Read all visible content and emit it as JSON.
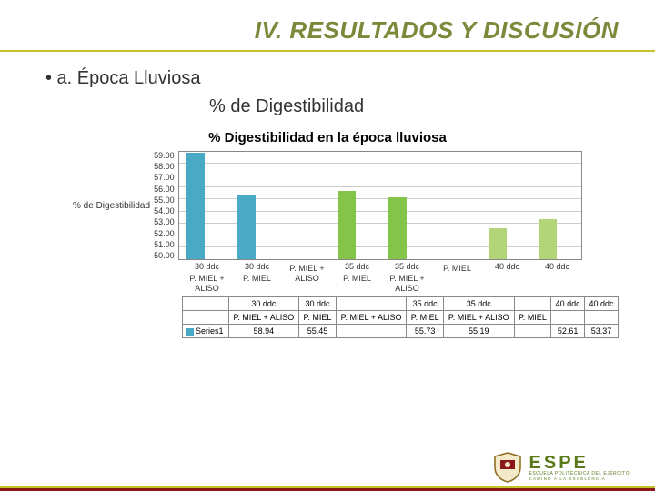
{
  "header": {
    "title": "IV. RESULTADOS Y DISCUSIÓN"
  },
  "bullet": "•  a. Época Lluviosa",
  "subTitle": "% de Digestibilidad",
  "chart": {
    "title": "% Digestibilidad en la época lluviosa",
    "type": "bar",
    "ylabel": "% de Digestibilidad",
    "ylim": [
      50,
      59
    ],
    "ytick_step": 1,
    "yticks": [
      "59.00",
      "58.00",
      "57.00",
      "56.00",
      "55.00",
      "54.00",
      "53.00",
      "52.00",
      "51.00",
      "50.00"
    ],
    "grid_color": "#cccccc",
    "border_color": "#888888",
    "background_color": "#ffffff",
    "bar_width_pct": 4.5,
    "categories": [
      {
        "c1": "30 ddc",
        "c2": "P. MIEL + ALISO",
        "tc1": "30 ddc",
        "tc2": "P. MIEL + ALISO"
      },
      {
        "c1": "30 ddc",
        "c2": "P. MIEL",
        "tc1": "30 ddc",
        "tc2": "P. MIEL"
      },
      {
        "c1": "",
        "c2": "P. MIEL + ALISO",
        "tc1": "",
        "tc2": "P. MIEL + ALISO"
      },
      {
        "c1": "35 ddc",
        "c2": "P. MIEL",
        "tc1": "35 ddc",
        "tc2": "P. MIEL"
      },
      {
        "c1": "35 ddc",
        "c2": "P. MIEL + ALISO",
        "tc1": "35 ddc",
        "tc2": "P. MIEL + ALISO"
      },
      {
        "c1": "",
        "c2": "P. MIEL",
        "tc1": "",
        "tc2": "P. MIEL"
      },
      {
        "c1": "40 ddc",
        "c2": "",
        "tc1": "40 ddc",
        "tc2": ""
      },
      {
        "c1": "40 ddc",
        "c2": "",
        "tc1": "40 ddc",
        "tc2": ""
      }
    ],
    "series": {
      "name": "Series1",
      "values": [
        58.94,
        55.45,
        null,
        55.73,
        55.19,
        null,
        52.61,
        53.37
      ],
      "display": [
        "58.94",
        "55.45",
        "",
        "55.73",
        "55.19",
        "",
        "52.61",
        "53.37"
      ],
      "colors": [
        "#4aa9c4",
        "#4aa9c4",
        "",
        "#84c44a",
        "#84c44a",
        "",
        "#b4d47a",
        "#b4d47a"
      ]
    }
  },
  "footer": {
    "logo_label": "ESPE",
    "org1": "ESCUELA POLITÉCNICA DEL EJÉRCITO",
    "org2": "CAMINO A LA EXCELENCIA"
  }
}
